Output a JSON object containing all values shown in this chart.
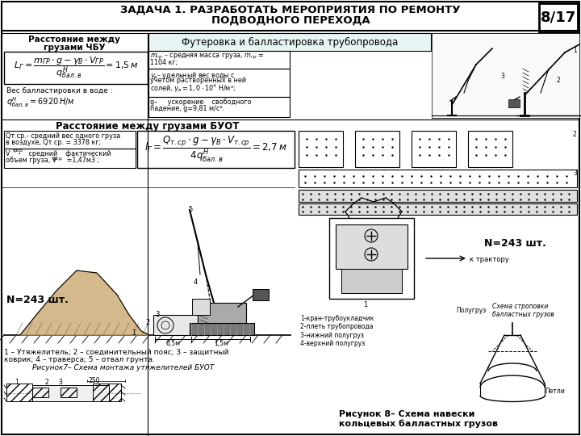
{
  "title_line1": "ЗАДАЧА 1. РАЗРАБОТАТЬ МЕРОПРИЯТИЯ ПО РЕМОНТУ",
  "title_line2": "ПОДВОДНОГО ПЕРЕХОДА",
  "page_number": "8/17",
  "subtitle_right": "Футеровка и балластировка трубопровода",
  "left_header": "Расстояние между\nгрузами ЧБУ",
  "weight_label": "Вес балластировки в воде :",
  "weight_value": "qнбал.в = 6920 Н/м",
  "param1": "mгр – средняя масса груза, mгр =\n1104 кг;",
  "param2": "γв– удельный вес воды с\nучетом растворенных в ней\nсолей, γв=1,0·10⁴ Н/м³;",
  "param3": "g–     ускорение    свободного\nпадение, g=9,81 м/с².",
  "section_buot": "Расстояние между грузами БУОТ",
  "buot_p1": "Qт.ср.- средний вес одного груза\nв воздухе, Qт.ср. = 3378 кг;",
  "buot_p2": "Vфср -    средний    фактический\nобъем груза, Vфср  =1,47м3 ;",
  "n_left": "N=243 шт.",
  "n_right": "N=243 шт.",
  "dim1": "0,5м",
  "dim2": "1,5м",
  "caption1a": "1 – Утяжелитель; 2 – соединительный пояс; 3 – защитный",
  "caption1b": "коврик; 4 – траверса; 5 – отвал грунта.",
  "caption1c": "Рисунок7– Схема монтажа утяжелителей БУОТ",
  "dim3": "250",
  "label123": "1        2  3",
  "k_tractor": "к трактору",
  "legend4": "1-кран-трубоукладчик\n2-плеть трубопровода\n3-нижний полугруз\n4-верхний полугруз",
  "schema_label": "Схема строповки\nбалластных грузов",
  "polugr": "Полугруз",
  "petli": "Петли",
  "caption2a": "Рисунок 8– Схема навески",
  "caption2b": "кольцевых балластных грузов",
  "bg": "#ffffff",
  "lc": "#000000",
  "subtitle_bg": "#e8f4f4"
}
